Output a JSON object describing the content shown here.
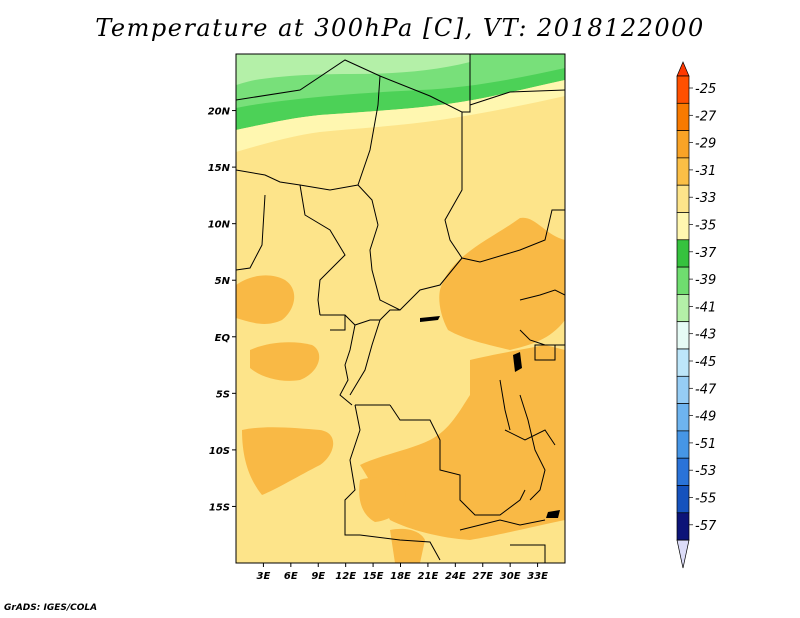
{
  "title": "Temperature at 300hPa [C], VT: 2018122000",
  "footer": "GrADS: IGES/COLA",
  "map": {
    "lon_range": [
      0,
      36
    ],
    "lat_range": [
      -20,
      25
    ],
    "lon_ticks": [
      "3E",
      "6E",
      "9E",
      "12E",
      "15E",
      "18E",
      "21E",
      "24E",
      "27E",
      "30E",
      "33E"
    ],
    "lat_ticks": [
      "20N",
      "15N",
      "10N",
      "5N",
      "EQ",
      "5S",
      "10S",
      "15S"
    ],
    "region_colors": {
      "very_light_green": "#b4f0a8",
      "light_green": "#78e07a",
      "green": "#4cd157",
      "pale_yellow": "#fff7b0",
      "yellow": "#fde48a",
      "orange": "#f9b945"
    }
  },
  "colorbar": {
    "labels": [
      "-25",
      "-27",
      "-29",
      "-31",
      "-33",
      "-35",
      "-37",
      "-39",
      "-41",
      "-43",
      "-45",
      "-47",
      "-49",
      "-51",
      "-53",
      "-55",
      "-57"
    ],
    "colors": [
      "#ff5000",
      "#f87a00",
      "#f9a326",
      "#fbbf46",
      "#fde48a",
      "#fff7b0",
      "#36c23e",
      "#6fdd6f",
      "#b4f0a8",
      "#e6fbf5",
      "#bde6fa",
      "#96cdf5",
      "#6eb4ef",
      "#4696e6",
      "#2a73d8",
      "#1552bd",
      "#0c1478"
    ],
    "top_color": "#ff3800",
    "bottom_color": "#dcdcf8"
  }
}
